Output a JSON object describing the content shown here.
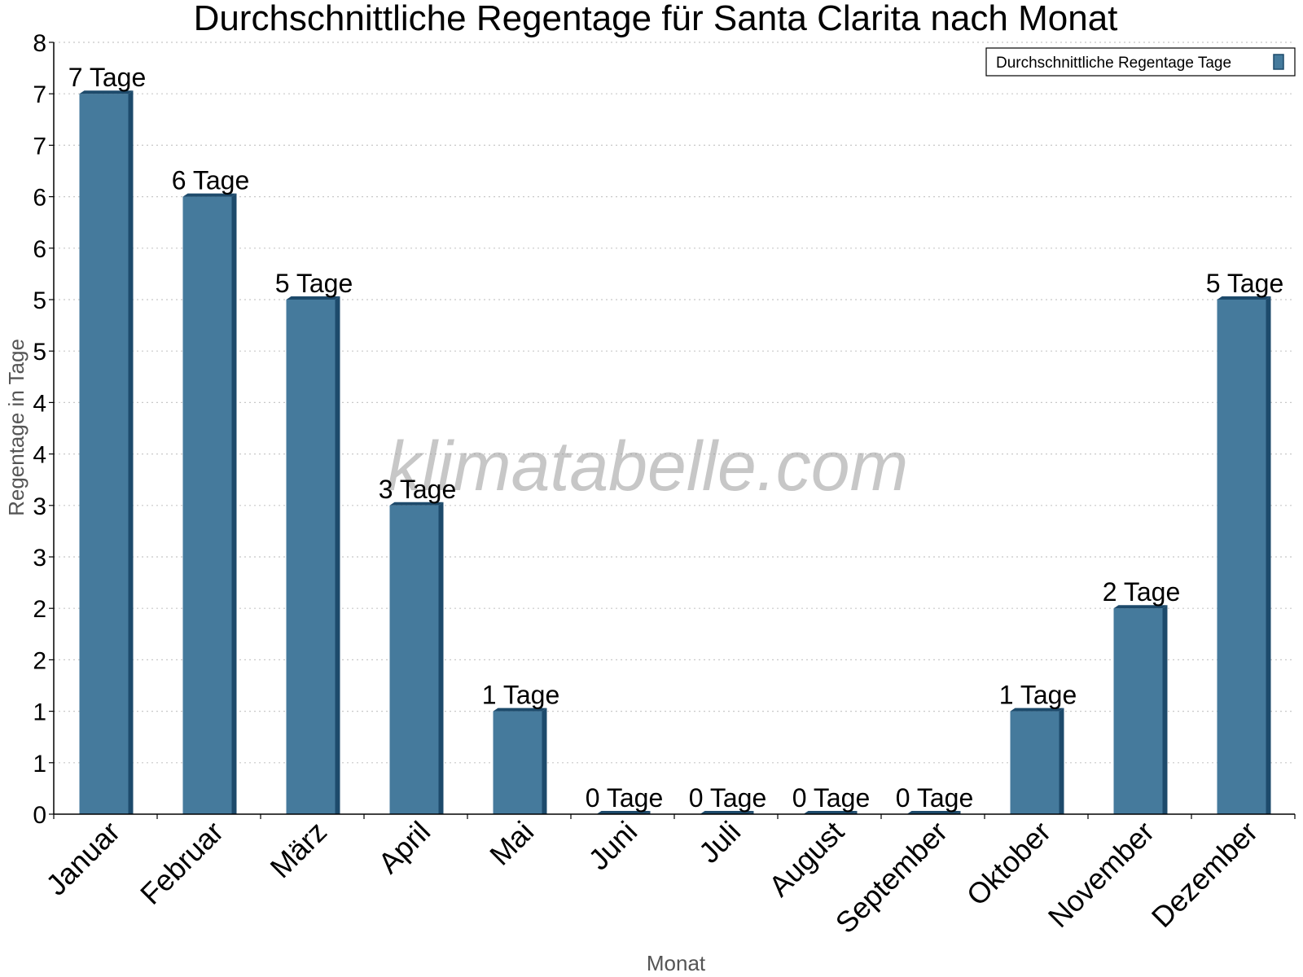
{
  "chart_data": {
    "type": "bar",
    "title": "Durchschnittliche Regentage für Santa Clarita nach Monat",
    "xlabel": "Monat",
    "ylabel": "Regentage in Tage",
    "categories": [
      "Januar",
      "Februar",
      "März",
      "April",
      "Mai",
      "Juni",
      "Juli",
      "August",
      "September",
      "Oktober",
      "November",
      "Dezember"
    ],
    "series": [
      {
        "name": "Durchschnittliche Regentage Tage",
        "values": [
          7,
          6,
          5,
          3,
          1,
          0,
          0,
          0,
          0,
          1,
          2,
          5
        ],
        "labels": [
          "7 Tage",
          "6 Tage",
          "5 Tage",
          "3 Tage",
          "1 Tage",
          "0 Tage",
          "0 Tage",
          "0 Tage",
          "0 Tage",
          "1 Tage",
          "2 Tage",
          "5 Tage"
        ]
      }
    ],
    "ylim": [
      0,
      7.5
    ],
    "ytick_values": [
      0,
      0.5,
      1,
      1.5,
      2,
      2.5,
      3,
      3.5,
      4,
      4.5,
      5,
      5.5,
      6,
      6.5,
      7,
      7.5
    ],
    "ytick_labels": [
      "0",
      "1",
      "1",
      "2",
      "2",
      "3",
      "3",
      "4",
      "4",
      "5",
      "5",
      "6",
      "6",
      "7",
      "7",
      "8"
    ],
    "grid": true,
    "legend_position": "top-right",
    "bar_color": "#457a9c",
    "bar_side_color": "#1d4a6b",
    "grid_color": "#c8c8c8"
  },
  "watermark": "klimatabelle.com"
}
